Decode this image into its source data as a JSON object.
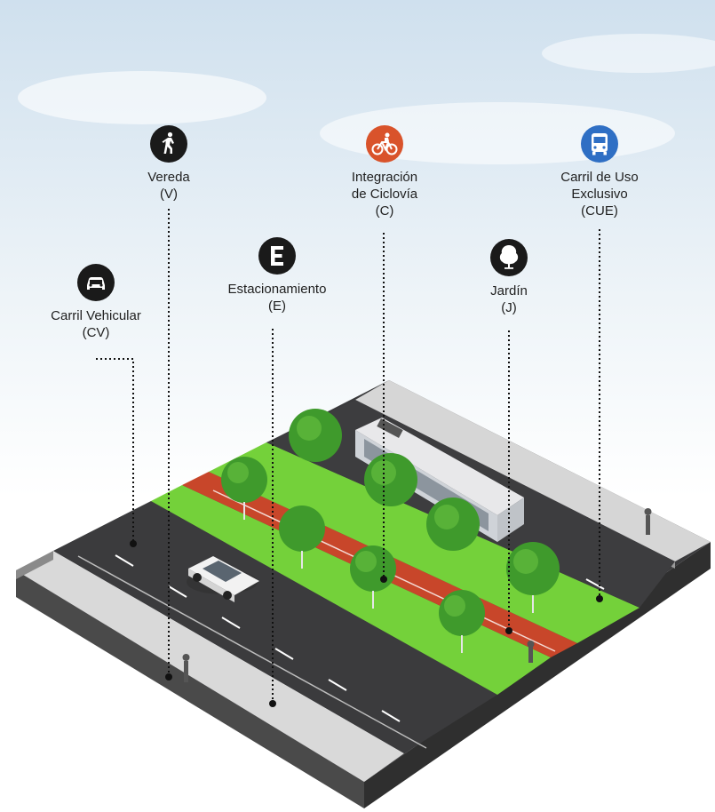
{
  "labels": {
    "cv": {
      "name": "Carril Vehicular",
      "code": "(CV)",
      "icon": "car-icon",
      "color": "#1a1a1a"
    },
    "v": {
      "name": "Vereda",
      "code": "(V)",
      "icon": "pedestrian-icon",
      "color": "#1a1a1a"
    },
    "e": {
      "name": "Estacionamiento",
      "code": "(E)",
      "icon": "parking-e-icon",
      "color": "#1a1a1a"
    },
    "c": {
      "line1": "Integración",
      "line2": "de Ciclovía",
      "code": "(C)",
      "icon": "bicycle-icon",
      "color": "#d9532b"
    },
    "j": {
      "name": "Jardín",
      "code": "(J)",
      "icon": "tree-icon",
      "color": "#1a1a1a"
    },
    "cue": {
      "line1": "Carril de Uso",
      "line2": "Exclusivo",
      "code": "(CUE)",
      "icon": "bus-icon",
      "color": "#2f6fc4"
    }
  },
  "colors": {
    "road": "#3a3a3c",
    "sidewalk": "#d9d9d9",
    "curb": "#8a8a8a",
    "grass": "#74d13a",
    "bikelane": "#c8462a",
    "tree": "#3f9a2c",
    "sky": "#dfeaf3"
  }
}
